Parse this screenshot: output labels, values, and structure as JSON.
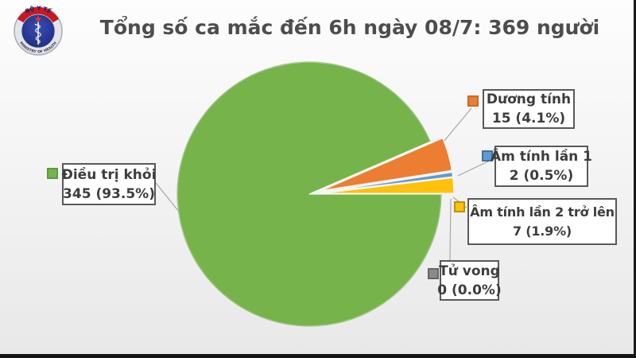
{
  "header": {
    "title": "Tổng số ca mắc đến 6h ngày 08/7: 369 người"
  },
  "logo": {
    "top_text": "BỘ Y TẾ",
    "bottom_text": "MINISTRY OF HEALTH",
    "ring_color": "#e4e5eb",
    "band_color": "#c8191f",
    "core_color": "#22318e",
    "star_color": "#e53528"
  },
  "chart_data": {
    "type": "pie",
    "title": "Tổng số ca mắc đến 6h ngày 08/7: 369 người",
    "total": 369,
    "start_angle_deg": 0,
    "direction": "clockwise",
    "legend_position": "callout-boxes",
    "slices": [
      {
        "label": "Điều trị khỏi",
        "value": 345,
        "pct": 93.5,
        "value_label": "345 (93.5%)",
        "color": "#76b44b",
        "border": "#5f9a39",
        "exploded": false
      },
      {
        "label": "Dương tính",
        "value": 15,
        "pct": 4.1,
        "value_label": "15 (4.1%)",
        "color": "#ed7d31",
        "border": "#c96a26",
        "exploded": true
      },
      {
        "label": "Âm tính lần 1",
        "value": 2,
        "pct": 0.5,
        "value_label": "2 (0.5%)",
        "color": "#5b9bd5",
        "border": "#41719c",
        "exploded": true
      },
      {
        "label": "Âm tính lần 2 trở lên",
        "value": 7,
        "pct": 1.9,
        "value_label": "7 (1.9%)",
        "color": "#ffc10a",
        "border": "#bf9000",
        "exploded": true
      },
      {
        "label": "Tử vong",
        "value": 0,
        "pct": 0.0,
        "value_label": "0 (0.0%)",
        "color": "#8a8a8a",
        "border": "#666666",
        "exploded": true
      }
    ]
  }
}
